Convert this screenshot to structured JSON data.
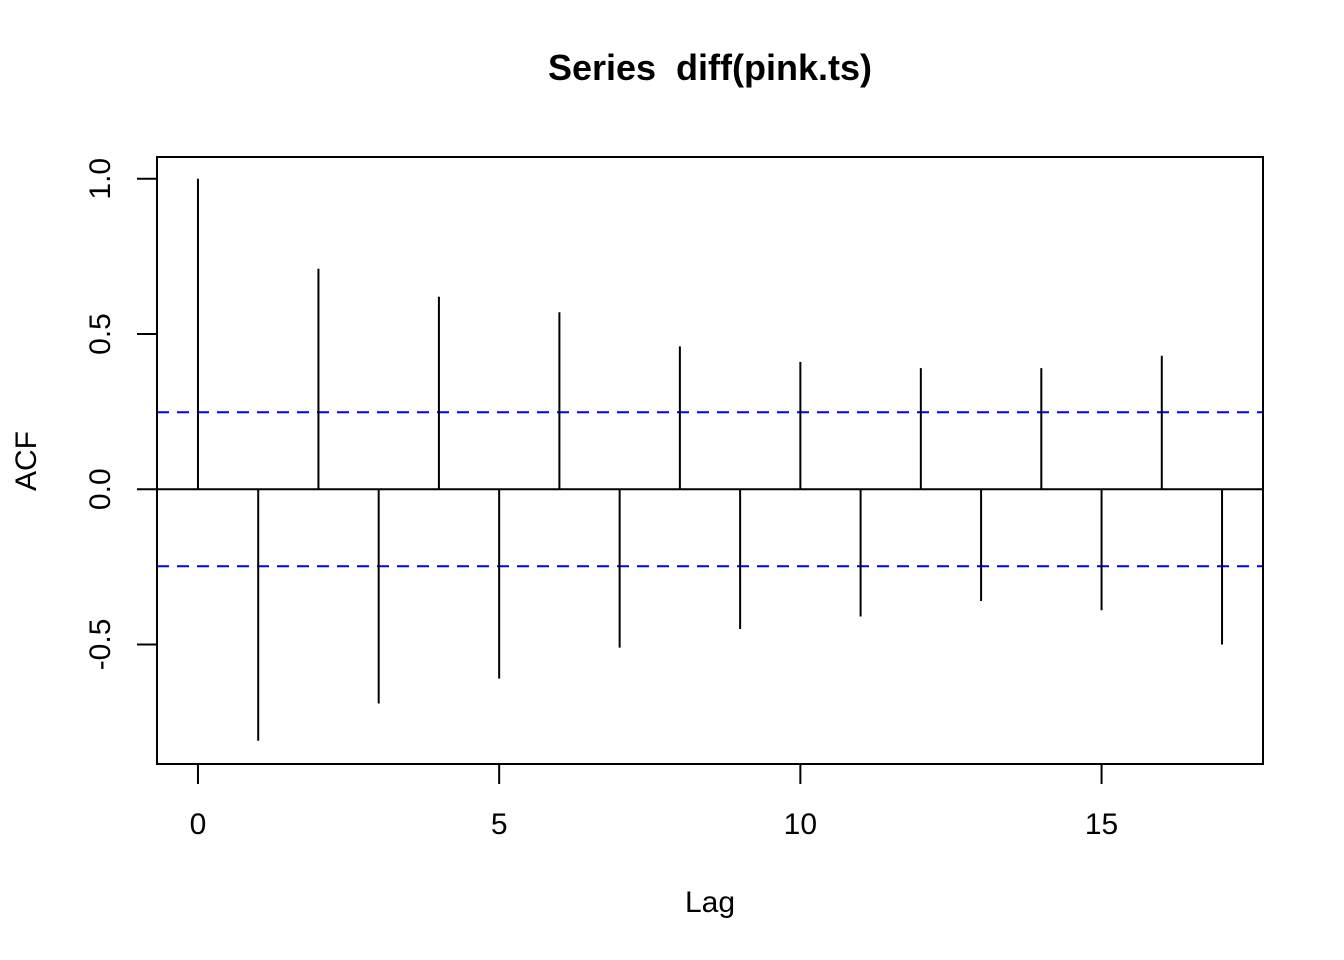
{
  "chart_data": {
    "type": "bar",
    "title": "Series  diff(pink.ts)",
    "xlabel": "Lag",
    "ylabel": "ACF",
    "x": [
      0,
      1,
      2,
      3,
      4,
      5,
      6,
      7,
      8,
      9,
      10,
      11,
      12,
      13,
      14,
      15,
      16,
      17
    ],
    "values": [
      1.0,
      -0.81,
      0.71,
      -0.69,
      0.62,
      -0.61,
      0.57,
      -0.51,
      0.46,
      -0.45,
      0.41,
      -0.41,
      0.39,
      -0.36,
      0.39,
      -0.39,
      0.43,
      -0.5
    ],
    "confidence_bound": 0.248,
    "xlim": [
      -0.68,
      17.68
    ],
    "ylim": [
      -0.885,
      1.07
    ],
    "x_ticks": [
      0,
      5,
      10,
      15
    ],
    "x_tick_labels": [
      "0",
      "5",
      "10",
      "15"
    ],
    "y_ticks": [
      -0.5,
      0.0,
      0.5,
      1.0
    ],
    "y_tick_labels": [
      "-0.5",
      "0.0",
      "0.5",
      "1.0"
    ],
    "bar_color": "#000000",
    "confidence_color": "#0000ff",
    "grid": false,
    "legend": "none"
  }
}
